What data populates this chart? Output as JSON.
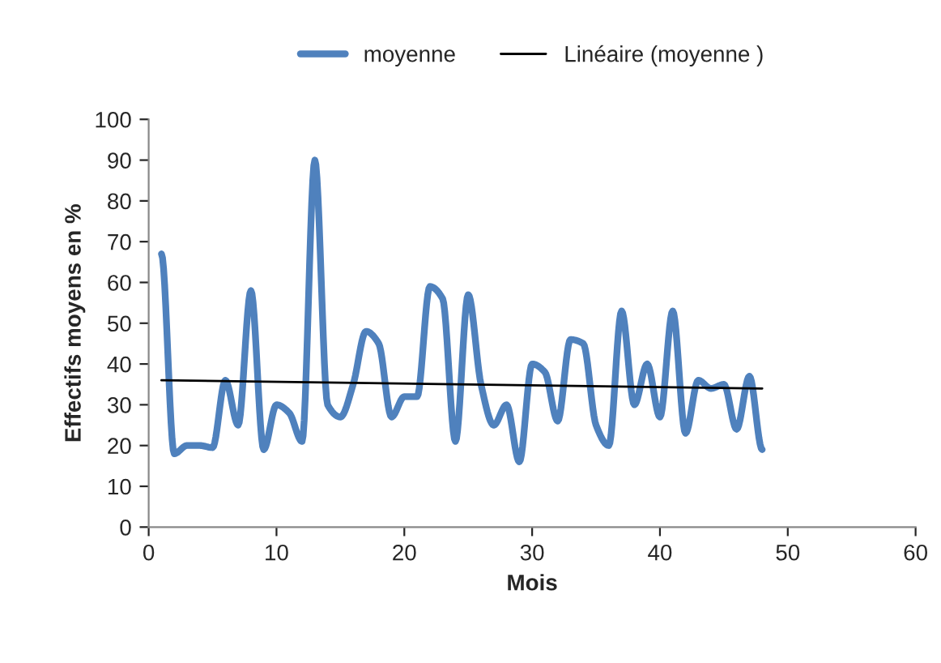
{
  "chart_data": {
    "type": "line",
    "xlabel": "Mois",
    "ylabel": "Effectifs moyens en %",
    "xlim": [
      0,
      60
    ],
    "xticks": [
      0,
      10,
      20,
      30,
      40,
      50,
      60
    ],
    "ylim": [
      0,
      100
    ],
    "yticks": [
      0,
      10,
      20,
      30,
      40,
      50,
      60,
      70,
      80,
      90,
      100
    ],
    "grid": false,
    "legend": "top",
    "marker": "none",
    "series": [
      {
        "name": "moyenne",
        "color": "#4f81bd",
        "x": [
          1,
          2,
          3,
          4,
          5,
          6,
          7,
          8,
          9,
          10,
          11,
          12,
          13,
          14,
          15,
          16,
          17,
          18,
          19,
          20,
          21,
          22,
          23,
          24,
          25,
          26,
          27,
          28,
          29,
          30,
          31,
          32,
          33,
          34,
          35,
          36,
          37,
          38,
          39,
          40,
          41,
          42,
          43,
          44,
          45,
          46,
          47,
          48
        ],
        "values": [
          67,
          18,
          20,
          20,
          19.5,
          36,
          25,
          58,
          19,
          30,
          28,
          21,
          90,
          30,
          27,
          35,
          48,
          45,
          27,
          32,
          32,
          59,
          56,
          21,
          57,
          35,
          25,
          30,
          16,
          40,
          38,
          26,
          46,
          45,
          25,
          20,
          53,
          30,
          40,
          27,
          53,
          23,
          36,
          34,
          35,
          24,
          37,
          19
        ]
      },
      {
        "name": "Linéaire (moyenne )",
        "color": "#000000",
        "type": "line",
        "x": [
          1,
          48
        ],
        "values": [
          36,
          34
        ]
      }
    ]
  }
}
